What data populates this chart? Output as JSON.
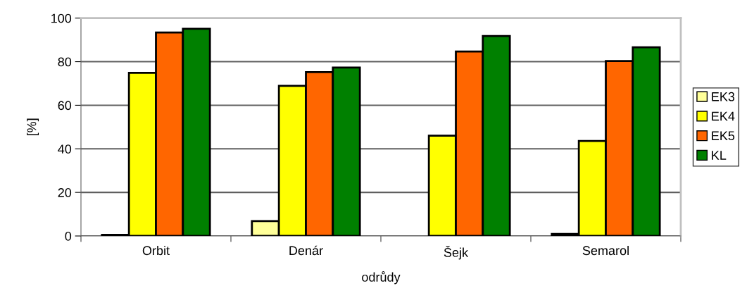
{
  "chart_data": {
    "type": "bar",
    "xlabel": "odrůdy",
    "ylabel": "[%]",
    "categories": [
      "Orbit",
      "Denár",
      "Šejk",
      "Semarol"
    ],
    "series": [
      {
        "name": "EK3",
        "color": "#ffff99",
        "values": [
          0.5,
          6.8,
          null,
          0.9
        ]
      },
      {
        "name": "EK4",
        "color": "#ffff00",
        "values": [
          74.9,
          68.9,
          46.0,
          43.6
        ]
      },
      {
        "name": "EK5",
        "color": "#ff6600",
        "values": [
          93.4,
          75.2,
          84.7,
          80.3
        ]
      },
      {
        "name": "KL",
        "color": "#008000",
        "values": [
          95.1,
          77.3,
          91.8,
          86.6
        ]
      }
    ],
    "ylim": [
      0,
      100
    ],
    "yticks": [
      0,
      20,
      40,
      60,
      80,
      100
    ],
    "grid": "y",
    "legend": "right"
  }
}
